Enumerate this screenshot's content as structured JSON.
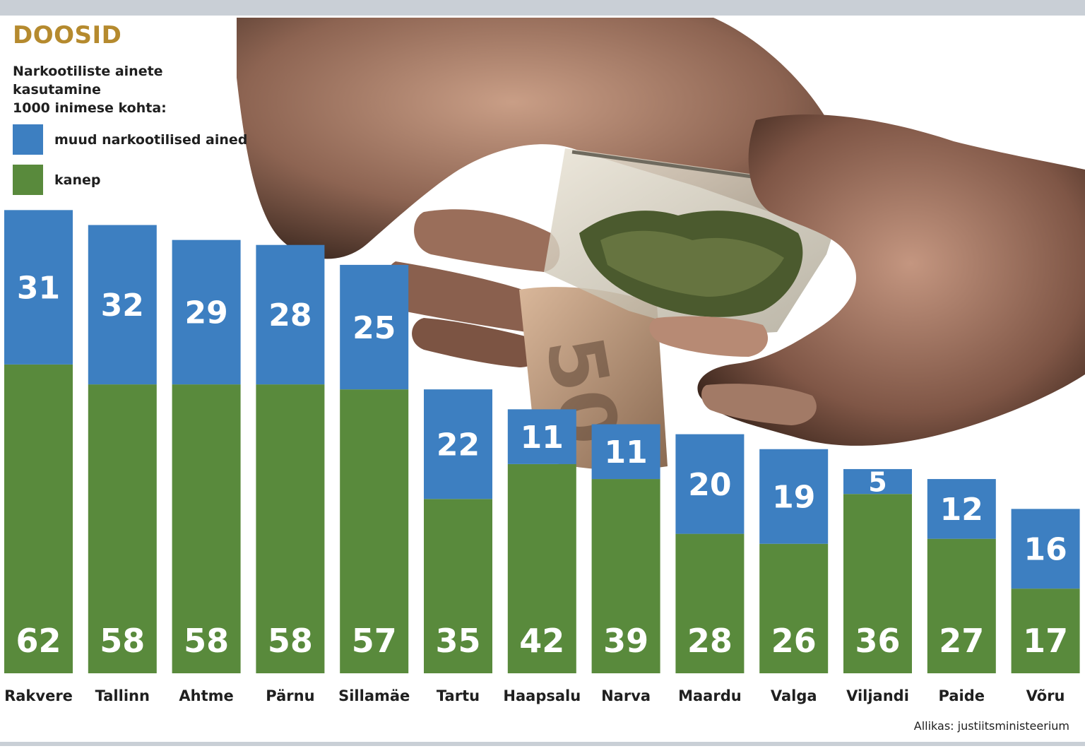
{
  "header": {
    "title": "DOOSID",
    "subtitle_line1": "Narkootiliste ainete kasutamine",
    "subtitle_line2": "1000 inimese kohta:"
  },
  "legend": {
    "other": "muud narkootilised ained",
    "cannabis": "kanep"
  },
  "source": "Allikas: justiitsministeerium",
  "colors": {
    "other": "#3d7fc1",
    "cannabis": "#598a3c",
    "title": "#b58a2e"
  },
  "chart_data": {
    "type": "bar",
    "stacked": true,
    "categories": [
      "Rakvere",
      "Tallinn",
      "Ahtme",
      "Pärnu",
      "Sillamäe",
      "Tartu",
      "Haapsalu",
      "Narva",
      "Maardu",
      "Valga",
      "Viljandi",
      "Paide",
      "Võru"
    ],
    "series": [
      {
        "name": "kanep",
        "values": [
          62,
          58,
          58,
          58,
          57,
          35,
          42,
          39,
          28,
          26,
          36,
          27,
          17
        ]
      },
      {
        "name": "muud narkootilised ained",
        "values": [
          31,
          32,
          29,
          28,
          25,
          22,
          11,
          11,
          20,
          19,
          5,
          12,
          16
        ]
      }
    ],
    "title": "DOOSID",
    "xlabel": "",
    "ylabel": "",
    "ylim": [
      0,
      93
    ],
    "legend": "top-left",
    "grid": false
  }
}
